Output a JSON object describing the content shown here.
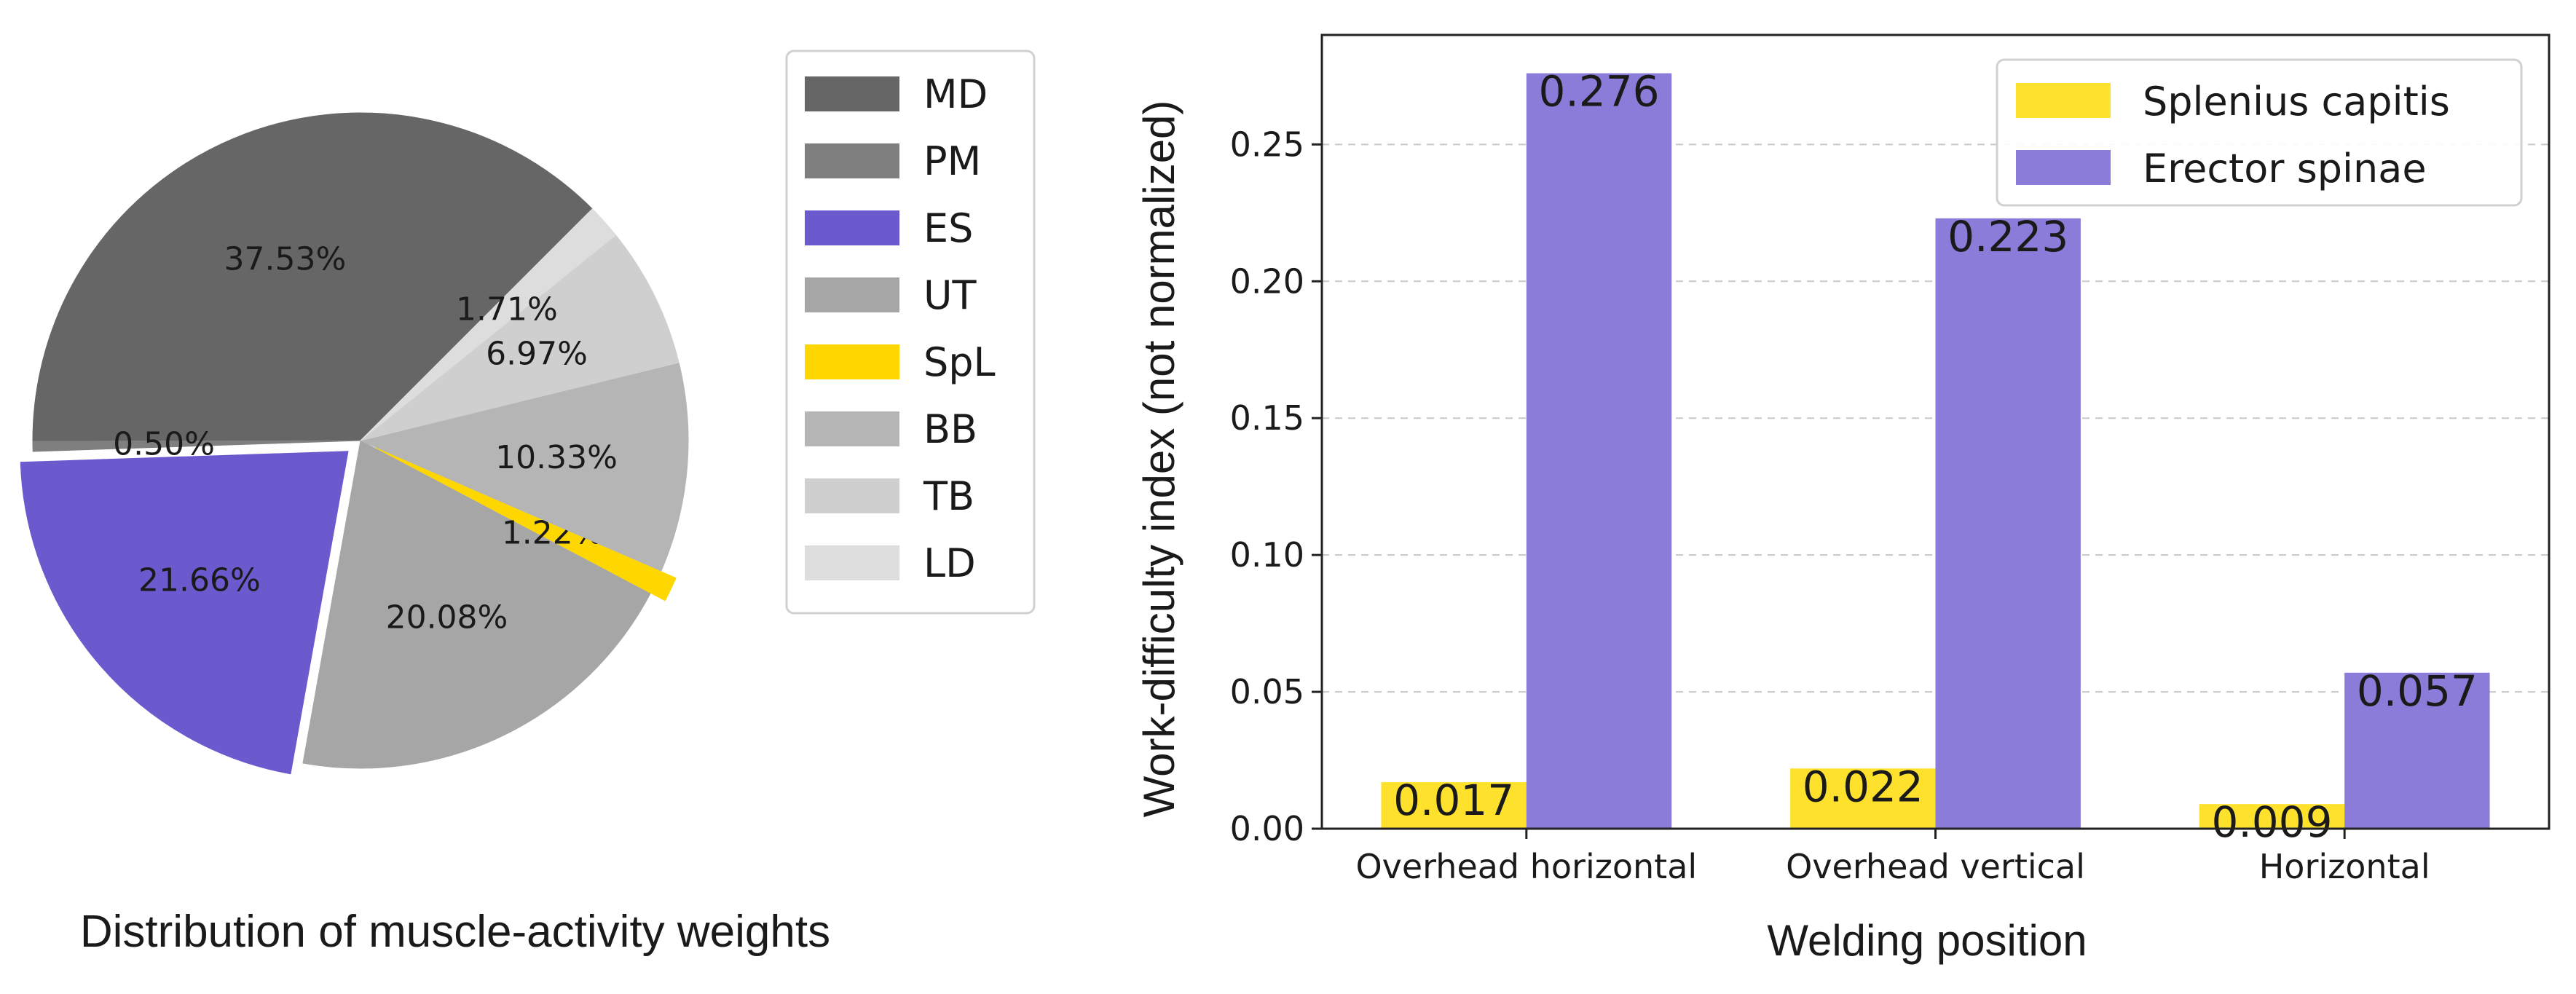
{
  "chart_data": [
    {
      "type": "pie",
      "title": "Distribution of muscle-activity weights",
      "legend_position": "right",
      "slices": [
        {
          "label": "MD",
          "value": 37.53,
          "text": "37.53%",
          "color": "#666666",
          "explode": false
        },
        {
          "label": "PM",
          "value": 0.5,
          "text": "0.50%",
          "color": "#7f7f7f",
          "explode": false
        },
        {
          "label": "ES",
          "value": 21.66,
          "text": "21.66%",
          "color": "#6a5acd",
          "explode": true
        },
        {
          "label": "UT",
          "value": 20.08,
          "text": "20.08%",
          "color": "#a6a6a6",
          "explode": false
        },
        {
          "label": "SpL",
          "value": 1.22,
          "text": "1.22%",
          "color": "#ffd700",
          "explode": true
        },
        {
          "label": "BB",
          "value": 10.33,
          "text": "10.33%",
          "color": "#b5b5b5",
          "explode": false
        },
        {
          "label": "TB",
          "value": 6.97,
          "text": "6.97%",
          "color": "#cfcfcf",
          "explode": false
        },
        {
          "label": "LD",
          "value": 1.71,
          "text": "1.71%",
          "color": "#dddddd",
          "explode": false
        }
      ]
    },
    {
      "type": "bar",
      "title": "",
      "xlabel": "Welding position",
      "ylabel": "Work-difficulty index (not normalized)",
      "categories": [
        "Overhead horizontal",
        "Overhead vertical",
        "Horizontal"
      ],
      "ylim": [
        0,
        0.29
      ],
      "yticks": [
        0.0,
        0.05,
        0.1,
        0.15,
        0.2,
        0.25
      ],
      "ytick_labels": [
        "0.00",
        "0.05",
        "0.10",
        "0.15",
        "0.20",
        "0.25"
      ],
      "grid": true,
      "legend_position": "top-right",
      "series": [
        {
          "name": "Splenius capitis",
          "color": "#fde12d",
          "values": [
            0.017,
            0.022,
            0.009
          ],
          "labels": [
            "0.017",
            "0.022",
            "0.009"
          ]
        },
        {
          "name": "Erector spinae",
          "color": "#8a7cd8",
          "values": [
            0.276,
            0.223,
            0.057
          ],
          "labels": [
            "0.276",
            "0.223",
            "0.057"
          ]
        }
      ]
    }
  ]
}
